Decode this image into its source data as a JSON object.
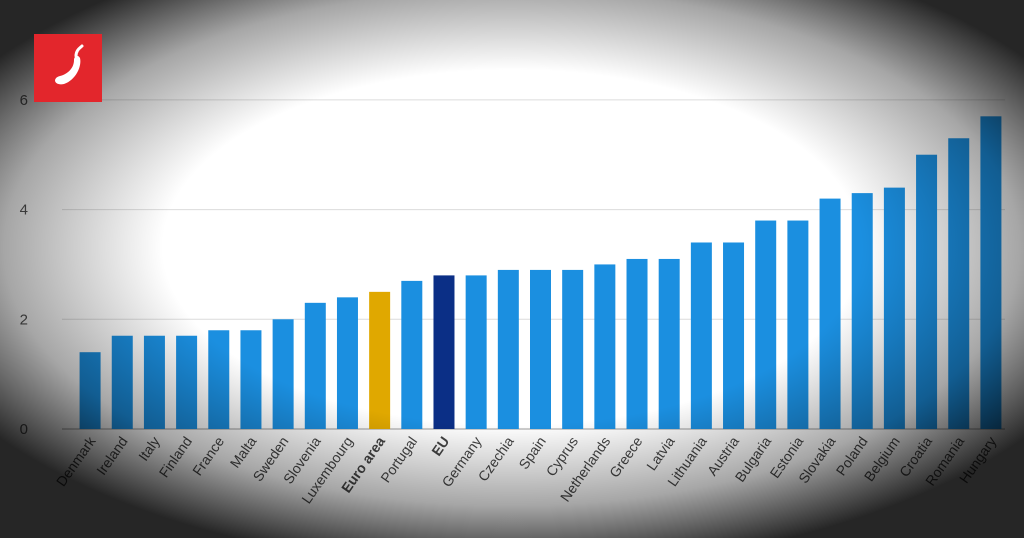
{
  "chart_data": {
    "type": "bar",
    "categories": [
      "Denmark",
      "Ireland",
      "Italy",
      "Finland",
      "France",
      "Malta",
      "Sweden",
      "Slovenia",
      "Luxembourg",
      "Euro area",
      "Portugal",
      "EU",
      "Germany",
      "Czechia",
      "Spain",
      "Cyprus",
      "Netherlands",
      "Greece",
      "Latvia",
      "Lithuania",
      "Austria",
      "Bulgaria",
      "Estonia",
      "Slovakia",
      "Poland",
      "Belgium",
      "Croatia",
      "Romania",
      "Hungary"
    ],
    "values": [
      1.4,
      1.7,
      1.7,
      1.7,
      1.8,
      1.8,
      2.0,
      2.3,
      2.4,
      2.5,
      2.7,
      2.8,
      2.8,
      2.9,
      2.9,
      2.9,
      3.0,
      3.1,
      3.1,
      3.4,
      3.4,
      3.8,
      3.8,
      4.2,
      4.3,
      4.4,
      5.0,
      5.3,
      5.7
    ],
    "highlight": {
      "Euro area": "#e0a800",
      "EU": "#0b2f86"
    },
    "bold_categories": [
      "Euro area",
      "EU"
    ],
    "bar_color": "#1b8fe0",
    "ylim": [
      0,
      7
    ],
    "yticks": [
      "0",
      "2",
      "4",
      "6"
    ],
    "grid": true,
    "title": "",
    "xlabel": "",
    "ylabel": ""
  },
  "logo": {
    "icon": "chili-pepper-icon",
    "color": "#e3262c"
  }
}
